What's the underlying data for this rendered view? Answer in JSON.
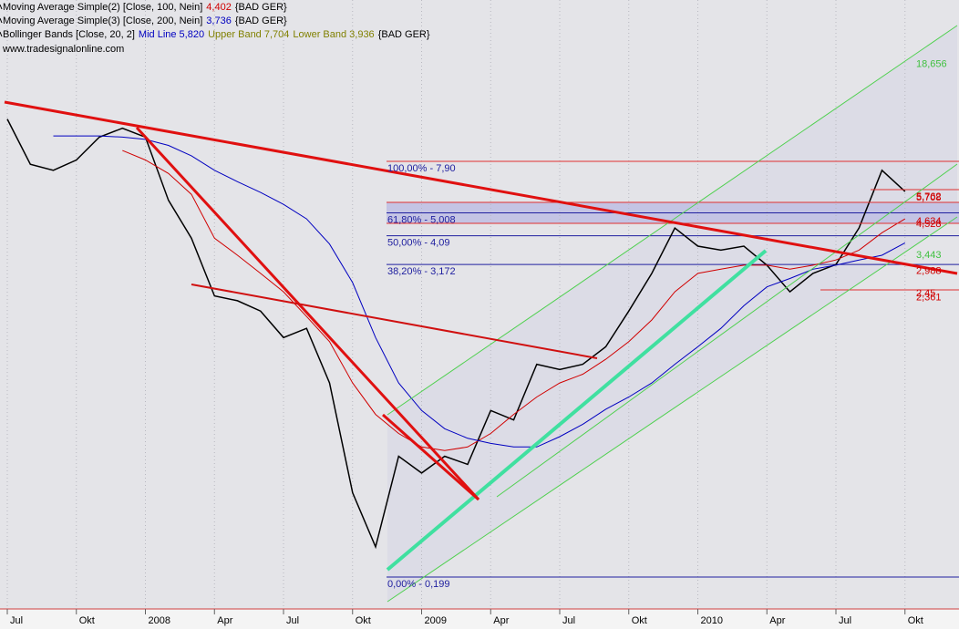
{
  "chart_data": {
    "type": "line",
    "log_scale": true,
    "ylim": [
      0.15,
      33
    ],
    "legend": [
      [
        {
          "text": "Moving Average Simple(2) [Close, 100, Nein]",
          "color": "#000000"
        },
        {
          "text": "4,402",
          "color": "#d00000"
        },
        {
          "text": "{BAD GER}",
          "color": "#000000"
        }
      ],
      [
        {
          "text": "Moving Average Simple(3) [Close, 200, Nein]",
          "color": "#000000"
        },
        {
          "text": "3,736",
          "color": "#0000c0"
        },
        {
          "text": "{BAD GER}",
          "color": "#000000"
        }
      ],
      [
        {
          "text": "Bollinger Bands [Close, 20, 2]",
          "color": "#000000"
        },
        {
          "text": "Mid Line 5,820",
          "color": "#0000c0"
        },
        {
          "text": "Upper Band 7,704",
          "color": "#808000"
        },
        {
          "text": "Lower Band 3,936",
          "color": "#808000"
        },
        {
          "text": "{BAD GER}",
          "color": "#000000"
        }
      ]
    ],
    "source": "www.tradesignalonline.com",
    "categories": [
      "Jul",
      null,
      null,
      "Okt",
      null,
      null,
      "2008",
      null,
      null,
      "Apr",
      null,
      null,
      "Jul",
      null,
      null,
      "Okt",
      null,
      null,
      "2009",
      null,
      null,
      "Apr",
      null,
      null,
      "Jul",
      null,
      null,
      "Okt",
      null,
      null,
      "2010",
      null,
      null,
      "Apr",
      null,
      null,
      "Jul",
      null,
      null,
      "Okt"
    ],
    "series": [
      {
        "color": "#000000",
        "values": [
          11.5,
          7.7,
          7.3,
          8.0,
          9.8,
          10.6,
          9.8,
          5.6,
          4.0,
          2.4,
          2.3,
          2.1,
          1.66,
          1.8,
          1.11,
          0.42,
          0.26,
          0.58,
          0.5,
          0.58,
          0.54,
          0.87,
          0.8,
          1.31,
          1.25,
          1.31,
          1.53,
          2.1,
          2.93,
          4.38,
          3.73,
          3.6,
          3.73,
          3.15,
          2.49,
          2.93,
          3.17,
          4.38,
          7.3,
          6.05
        ]
      },
      {
        "color": "#d00000",
        "values": [
          null,
          null,
          null,
          null,
          null,
          8.7,
          8.0,
          7.1,
          5.9,
          4.0,
          3.44,
          2.93,
          2.49,
          2.0,
          1.6,
          1.11,
          0.84,
          0.71,
          0.63,
          0.61,
          0.63,
          0.71,
          0.84,
          0.98,
          1.11,
          1.2,
          1.37,
          1.6,
          1.94,
          2.49,
          2.93,
          3.04,
          3.15,
          3.15,
          3.04,
          3.15,
          3.3,
          3.6,
          4.2,
          4.75
        ]
      },
      {
        "color": "#0000c0",
        "values": [
          null,
          null,
          9.9,
          9.9,
          9.9,
          9.8,
          9.6,
          9.1,
          8.3,
          7.3,
          6.6,
          6.0,
          5.4,
          4.75,
          3.8,
          2.7,
          1.66,
          1.11,
          0.87,
          0.74,
          0.68,
          0.65,
          0.63,
          0.63,
          0.69,
          0.77,
          0.88,
          0.98,
          1.11,
          1.31,
          1.53,
          1.8,
          2.2,
          2.6,
          2.8,
          3.04,
          3.15,
          3.3,
          3.44,
          3.84
        ]
      }
    ],
    "fib_levels": [
      {
        "label": "100,00% - 7,90",
        "value": 7.9
      },
      {
        "label": "61,80% - 5,008",
        "value": 5.008
      },
      {
        "label": "50,00% - 4,09",
        "value": 4.09
      },
      {
        "label": "38,20% - 3,172",
        "value": 3.172
      },
      {
        "label": "0,00% - 0,199",
        "value": 0.199
      }
    ],
    "fib_color": "#2020a0",
    "right_labels": [
      {
        "label": "18,656",
        "value": 18.656,
        "color": "#40c040"
      },
      {
        "label": "5,762",
        "value": 5.762,
        "color": "#d00000"
      },
      {
        "label": "5,708",
        "value": 5.708,
        "color": "#d00000"
      },
      {
        "label": "4,634",
        "value": 4.634,
        "color": "#d00000"
      },
      {
        "label": "4,528",
        "value": 4.528,
        "color": "#d00000"
      },
      {
        "label": "3,443",
        "value": 3.443,
        "color": "#40c040"
      },
      {
        "label": "2,988",
        "value": 2.988,
        "color": "#d00000"
      },
      {
        "label": "2,45",
        "value": 2.45,
        "color": "#d00000"
      },
      {
        "label": "2,361",
        "value": 2.361,
        "color": "#d00000"
      }
    ]
  }
}
